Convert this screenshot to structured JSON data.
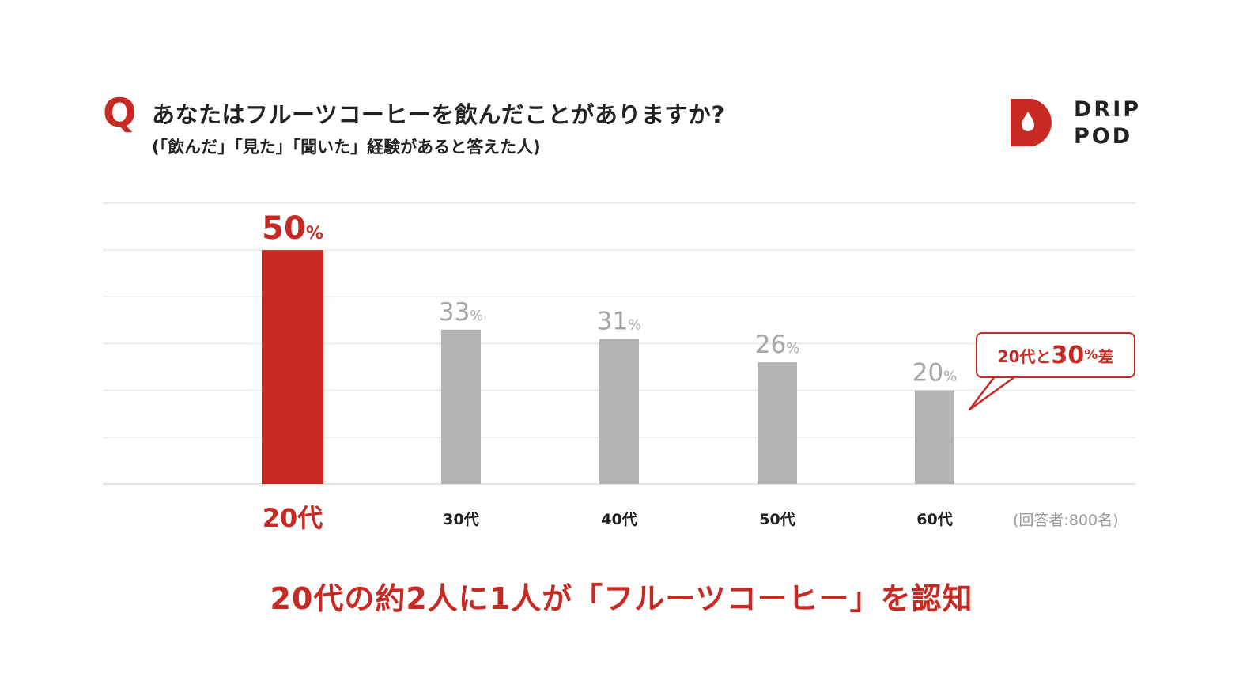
{
  "header": {
    "q_mark": "Q",
    "question": "あなたはフルーツコーヒーを飲んだことがありますか?",
    "note": "(「飲んだ」「見た」「聞いた」経験があると答えた人)"
  },
  "logo": {
    "line1": "DRIP",
    "line2": "POD",
    "icon": "drop-icon"
  },
  "colors": {
    "accent": "#c62a22",
    "bar_gray": "#b3b3b3",
    "grid": "#e6e6e6",
    "label_gray": "#a6a6a6"
  },
  "chart_data": {
    "type": "bar",
    "categories": [
      "20代",
      "30代",
      "40代",
      "50代",
      "60代"
    ],
    "values": [
      50,
      33,
      31,
      26,
      20
    ],
    "value_labels": [
      "50",
      "33",
      "31",
      "26",
      "20"
    ],
    "unit": "%",
    "highlight_index": 0,
    "ylim": [
      0,
      60
    ],
    "grid": true
  },
  "callout": {
    "prefix": "20代と",
    "value": "30",
    "unit": "%",
    "suffix": "差"
  },
  "sample_note": "(回答者:800名)",
  "conclusion": "20代の約2人に1人が「フルーツコーヒー」を認知"
}
